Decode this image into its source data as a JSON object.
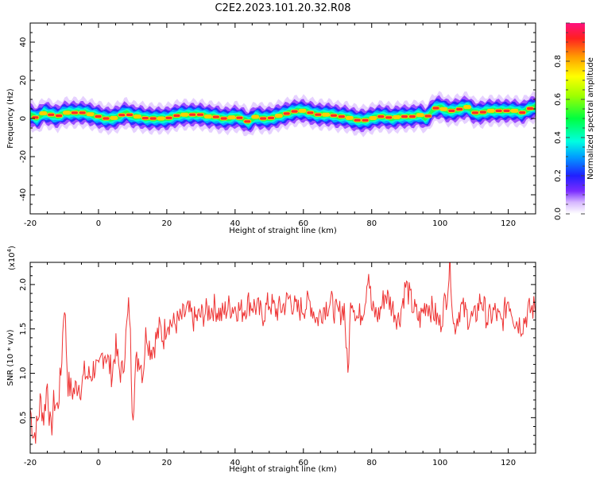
{
  "title": "C2E2.2023.101.20.32.R08",
  "chart_data": [
    {
      "type": "heatmap",
      "xlabel": "Height of straight line (km)",
      "ylabel": "Frequency (Hz)",
      "xlim": [
        -20,
        128
      ],
      "ylim": [
        -50,
        50
      ],
      "x_ticks": [
        "-20",
        "0",
        "20",
        "40",
        "60",
        "80",
        "100",
        "120"
      ],
      "y_ticks": [
        "-40",
        "-20",
        "0",
        "20",
        "40"
      ],
      "ridge_freq_by_height": {
        "x": [
          -20,
          -18,
          -16,
          -14,
          -12,
          -10,
          -8,
          -6,
          -4,
          -2,
          0,
          2,
          4,
          6,
          8,
          10,
          12,
          14,
          16,
          18,
          20,
          22,
          24,
          26,
          28,
          30,
          32,
          34,
          36,
          38,
          40,
          42,
          44,
          46,
          48,
          50,
          52,
          54,
          56,
          58,
          60,
          62,
          64,
          66,
          68,
          70,
          72,
          74,
          76,
          78,
          80,
          82,
          84,
          86,
          88,
          90,
          92,
          94,
          96,
          98,
          100,
          102,
          104,
          106,
          108,
          110,
          112,
          114,
          116,
          118,
          120,
          122,
          124,
          126,
          128
        ],
        "y": [
          2,
          0,
          3,
          2,
          1,
          3,
          3,
          3,
          3,
          2,
          1,
          0,
          0,
          1,
          3,
          1,
          1,
          0,
          0,
          0,
          0,
          1,
          2,
          2,
          2,
          2,
          1,
          1,
          0,
          0,
          1,
          0,
          -2,
          1,
          0,
          0,
          1,
          2,
          3,
          4,
          4,
          3,
          2,
          2,
          2,
          1,
          1,
          0,
          -1,
          -1,
          0,
          1,
          1,
          0,
          1,
          1,
          1,
          2,
          0,
          5,
          6,
          4,
          4,
          5,
          6,
          3,
          3,
          4,
          4,
          4,
          4,
          4,
          3,
          5,
          6
        ]
      },
      "colorbar": {
        "label": "Normalized spectral amplitude",
        "range": [
          0.0,
          1.0
        ],
        "ticks": [
          "0.0",
          "0.2",
          "0.4",
          "0.6",
          "0.8"
        ]
      }
    },
    {
      "type": "line",
      "xlabel": "Height of straight line (km)",
      "ylabel": "SNR (10 * v/v)",
      "multiplier_label": "(x10",
      "multiplier_exp": "4",
      "xlim": [
        -20,
        128
      ],
      "ylim": [
        0.1,
        2.25
      ],
      "x_ticks": [
        "-20",
        "0",
        "20",
        "40",
        "60",
        "80",
        "100",
        "120"
      ],
      "y_ticks": [
        "0.5",
        "1.0",
        "1.5",
        "2.0"
      ],
      "series": [
        {
          "color": "#ee3333",
          "x": [
            -20,
            -19,
            -18,
            -17,
            -16,
            -15,
            -14,
            -13,
            -12,
            -11,
            -10,
            -9,
            -8,
            -7,
            -6,
            -5,
            -4,
            -3,
            -2,
            -1,
            0,
            1,
            2,
            3,
            4,
            5,
            6,
            7,
            8,
            9,
            10,
            11,
            12,
            13,
            14,
            15,
            16,
            17,
            18,
            19,
            20,
            22,
            24,
            26,
            28,
            30,
            32,
            34,
            36,
            38,
            40,
            42,
            44,
            46,
            48,
            50,
            52,
            54,
            56,
            58,
            60,
            62,
            64,
            66,
            68,
            70,
            72,
            73,
            74,
            76,
            78,
            79,
            80,
            82,
            84,
            86,
            88,
            90,
            92,
            94,
            96,
            98,
            100,
            102,
            103,
            104,
            106,
            108,
            110,
            112,
            114,
            116,
            118,
            120,
            122,
            124,
            126,
            128
          ],
          "y": [
            0.6,
            0.3,
            0.4,
            0.7,
            0.5,
            0.9,
            0.3,
            0.7,
            0.6,
            1.0,
            1.85,
            0.9,
            0.8,
            0.8,
            0.9,
            0.85,
            1.0,
            0.95,
            1.0,
            1.1,
            0.95,
            1.2,
            1.25,
            1.1,
            1.0,
            1.3,
            1.05,
            1.0,
            1.4,
            1.8,
            0.55,
            1.1,
            1.2,
            1.0,
            1.5,
            1.3,
            1.3,
            1.4,
            1.5,
            1.4,
            1.6,
            1.55,
            1.6,
            1.7,
            1.6,
            1.65,
            1.7,
            1.75,
            1.65,
            1.75,
            1.75,
            1.7,
            1.8,
            1.75,
            1.65,
            1.8,
            1.7,
            1.75,
            1.85,
            1.7,
            1.75,
            1.8,
            1.6,
            1.75,
            1.8,
            1.65,
            1.75,
            0.95,
            1.9,
            1.6,
            1.8,
            2.2,
            1.7,
            1.65,
            1.9,
            1.75,
            1.6,
            2.0,
            1.75,
            1.6,
            1.8,
            1.7,
            1.55,
            1.9,
            2.25,
            1.5,
            1.75,
            1.65,
            1.6,
            1.85,
            1.6,
            1.7,
            1.55,
            1.85,
            1.6,
            1.55,
            1.7,
            1.75
          ]
        }
      ]
    }
  ]
}
